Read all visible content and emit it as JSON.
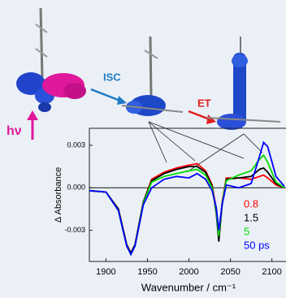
{
  "chart_data": {
    "type": "line",
    "annotations": [
      "hν",
      "ISC",
      "ET"
    ],
    "xlabel": "Wavenumber / cm⁻¹",
    "ylabel": "Δ Absorbance",
    "x": [
      1880,
      1900,
      1915,
      1925,
      1930,
      1935,
      1945,
      1955,
      1970,
      1985,
      2000,
      2010,
      2020,
      2028,
      2033,
      2036,
      2040,
      2045,
      2060,
      2075,
      2085,
      2090,
      2095,
      2105,
      2115
    ],
    "series": [
      {
        "name": "0.8",
        "color": "#ff0000",
        "values": [
          -0.0002,
          -0.0003,
          -0.0015,
          -0.004,
          -0.0046,
          -0.004,
          -0.001,
          0.0006,
          0.0011,
          0.0014,
          0.0016,
          0.0017,
          0.0012,
          0.0002,
          -0.0015,
          -0.0035,
          -0.001,
          0.0007,
          0.0007,
          0.0006,
          0.0008,
          0.0009,
          0.0007,
          0.0002,
          0.0
        ]
      },
      {
        "name": "1.5",
        "color": "#000000",
        "values": [
          -0.0002,
          -0.0003,
          -0.0015,
          -0.004,
          -0.0046,
          -0.004,
          -0.001,
          0.0005,
          0.001,
          0.0013,
          0.0015,
          0.0015,
          0.0011,
          0.0001,
          -0.0018,
          -0.0038,
          -0.0012,
          0.0006,
          0.0007,
          0.0008,
          0.0013,
          0.0014,
          0.0011,
          0.0003,
          0.0
        ]
      },
      {
        "name": "5",
        "color": "#00dd00",
        "values": [
          -0.0002,
          -0.0003,
          -0.0016,
          -0.0041,
          -0.0047,
          -0.0041,
          -0.0011,
          0.0004,
          0.0008,
          0.001,
          0.0012,
          0.0013,
          0.0009,
          0.0,
          -0.0016,
          -0.0034,
          -0.0011,
          0.0005,
          0.0009,
          0.0012,
          0.002,
          0.0023,
          0.0018,
          0.0004,
          0.0
        ]
      },
      {
        "name": "50 ps",
        "color": "#0000ff",
        "values": [
          -0.0002,
          -0.0003,
          -0.0016,
          -0.0041,
          -0.0047,
          -0.0041,
          -0.0012,
          0.0,
          0.0006,
          0.0008,
          0.0007,
          0.001,
          0.0006,
          -0.0002,
          -0.0014,
          -0.003,
          -0.0012,
          0.0002,
          0.0,
          0.0003,
          0.0022,
          0.0032,
          0.0029,
          0.0008,
          0.0001
        ]
      }
    ],
    "xlim": [
      1880,
      2117
    ],
    "xticks": [
      1900,
      1950,
      2000,
      2050,
      2100
    ],
    "ylim": [
      -0.0052,
      0.0042
    ],
    "yticks": [
      0.003,
      {
        "value": 0,
        "label": "0.000"
      },
      -0.003
    ],
    "grid": false
  }
}
